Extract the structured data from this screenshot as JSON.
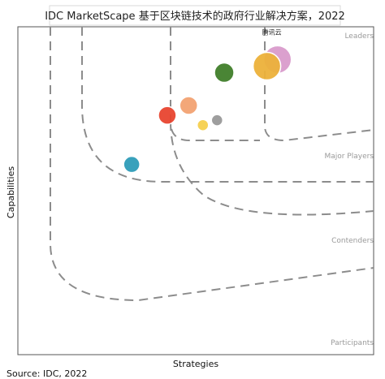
{
  "chart_data": {
    "type": "scatter",
    "title": "IDC MarketScape 基于区块链技术的政府行业解决方案，2022",
    "xlabel": "Strategies",
    "ylabel": "Capabilities",
    "source": "Source: IDC, 2022",
    "band_labels": [
      "Leaders",
      "Major Players",
      "Contenders",
      "Participants"
    ],
    "xlim": [
      0,
      1
    ],
    "ylim": [
      0,
      1
    ],
    "grid": false,
    "legend": "none",
    "points": [
      {
        "x": 0.52,
        "y": 0.7,
        "r": 7,
        "color": "#f5d04e",
        "label": ""
      },
      {
        "x": 0.56,
        "y": 0.715,
        "r": 7,
        "color": "#999999",
        "label": ""
      },
      {
        "x": 0.42,
        "y": 0.73,
        "r": 11,
        "color": "#e8442f",
        "label": ""
      },
      {
        "x": 0.48,
        "y": 0.76,
        "r": 11,
        "color": "#f2a272",
        "label": ""
      },
      {
        "x": 0.58,
        "y": 0.86,
        "r": 12,
        "color": "#407e2a",
        "label": ""
      },
      {
        "x": 0.73,
        "y": 0.9,
        "r": 17,
        "color": "#d99bcb",
        "label": ""
      },
      {
        "x": 0.7,
        "y": 0.88,
        "r": 17,
        "color": "#ecb13a",
        "label": "腾讯云"
      },
      {
        "x": 0.32,
        "y": 0.58,
        "r": 10,
        "color": "#2e9cb8",
        "label": ""
      }
    ]
  }
}
